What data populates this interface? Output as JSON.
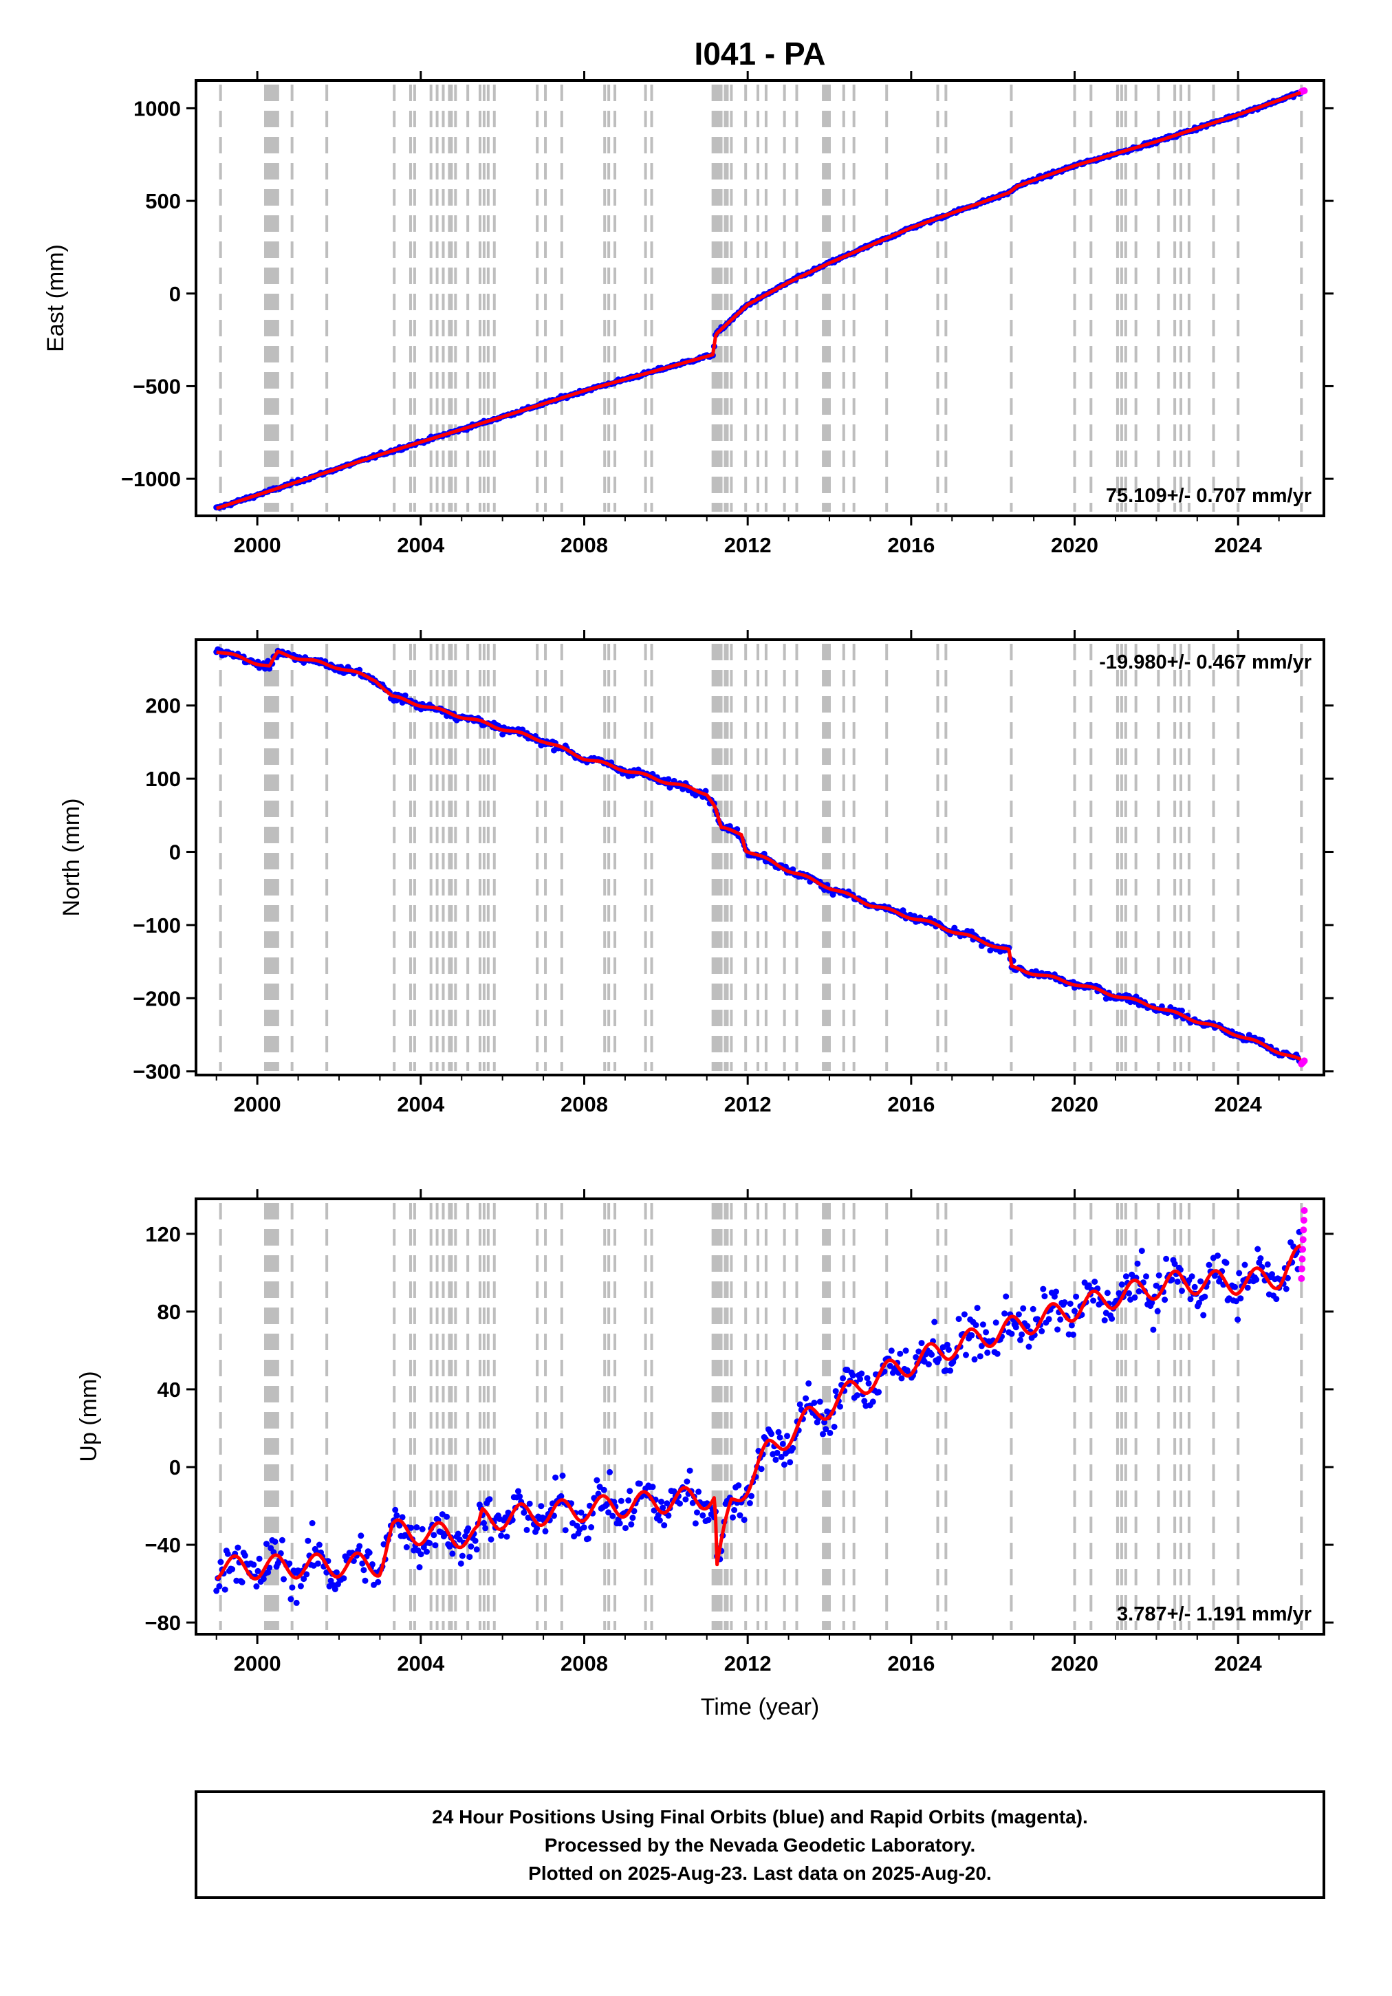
{
  "title": "I041 - PA",
  "xlabel": "Time (year)",
  "x_ticks": [
    "2000",
    "2004",
    "2008",
    "2012",
    "2016",
    "2020",
    "2024"
  ],
  "footer": {
    "line1": "24 Hour Positions Using Final Orbits (blue) and Rapid Orbits (magenta).",
    "line2": "Processed by the Nevada Geodetic Laboratory.",
    "line3": "Plotted on 2025-Aug-23. Last data on 2025-Aug-20."
  },
  "colors": {
    "final_orbits": "#0000ff",
    "rapid_orbits": "#ff00ff",
    "model": "#ff0000",
    "event_lines": "#bebebe",
    "frame": "#000000"
  },
  "chart_data": [
    {
      "type": "scatter",
      "ylabel": "East (mm)",
      "xlim": [
        1998.5,
        2026.1
      ],
      "ylim": [
        -1200,
        1150
      ],
      "y_ticks": [
        "1000",
        "500",
        "0",
        "−500",
        "−1000"
      ],
      "y_tick_values": [
        1000,
        500,
        0,
        -500,
        -1000
      ],
      "rate_label": "75.109+/- 0.707 mm/yr",
      "rate_position": "bottom-right",
      "trend_points": [
        [
          1999.0,
          -1160
        ],
        [
          2003.0,
          -870
        ],
        [
          2006.0,
          -665
        ],
        [
          2008.0,
          -525
        ],
        [
          2011.15,
          -330
        ],
        [
          2011.22,
          -220
        ],
        [
          2012.0,
          -60
        ],
        [
          2013.0,
          60
        ],
        [
          2014.0,
          165
        ],
        [
          2016.0,
          355
        ],
        [
          2018.4,
          545
        ],
        [
          2018.6,
          580
        ],
        [
          2020.0,
          690
        ],
        [
          2022.0,
          820
        ],
        [
          2024.0,
          965
        ],
        [
          2025.6,
          1090
        ]
      ],
      "rapid_end_value": 1092
    },
    {
      "type": "scatter",
      "ylabel": "North (mm)",
      "xlim": [
        1998.5,
        2026.1
      ],
      "ylim": [
        -305,
        290
      ],
      "y_ticks": [
        "200",
        "100",
        "0",
        "−100",
        "−200",
        "−300"
      ],
      "y_tick_values": [
        200,
        100,
        0,
        -100,
        -200,
        -300
      ],
      "rate_label": "-19.980+/- 0.467 mm/yr",
      "rate_position": "top-right",
      "trend_points": [
        [
          1999.0,
          275
        ],
        [
          2000.3,
          253
        ],
        [
          2000.5,
          272
        ],
        [
          2002.0,
          252
        ],
        [
          2002.9,
          235
        ],
        [
          2003.3,
          212
        ],
        [
          2005.0,
          185
        ],
        [
          2007.0,
          152
        ],
        [
          2008.0,
          128
        ],
        [
          2011.0,
          80
        ],
        [
          2011.2,
          62
        ],
        [
          2011.35,
          32
        ],
        [
          2011.85,
          25
        ],
        [
          2011.95,
          3
        ],
        [
          2013.0,
          -25
        ],
        [
          2015.0,
          -72
        ],
        [
          2016.5,
          -98
        ],
        [
          2018.4,
          -135
        ],
        [
          2018.45,
          -158
        ],
        [
          2020.0,
          -180
        ],
        [
          2022.0,
          -212
        ],
        [
          2024.0,
          -250
        ],
        [
          2025.6,
          -287
        ]
      ],
      "rapid_end_value": -288
    },
    {
      "type": "scatter",
      "ylabel": "Up (mm)",
      "xlim": [
        1998.5,
        2026.1
      ],
      "ylim": [
        -86,
        138
      ],
      "y_ticks": [
        "120",
        "80",
        "40",
        "0",
        "−40",
        "−80"
      ],
      "y_tick_values": [
        120,
        80,
        40,
        0,
        -40,
        -80
      ],
      "rate_label": "3.787+/- 1.191 mm/yr",
      "rate_position": "bottom-right",
      "trend_points": [
        [
          1999.0,
          -52
        ],
        [
          2003.0,
          -50
        ],
        [
          2003.3,
          -33
        ],
        [
          2005.4,
          -36
        ],
        [
          2005.5,
          -27
        ],
        [
          2011.2,
          -15
        ],
        [
          2011.25,
          -52
        ],
        [
          2011.6,
          -20
        ],
        [
          2012.5,
          8
        ],
        [
          2013.5,
          25
        ],
        [
          2015.0,
          45
        ],
        [
          2017.0,
          62
        ],
        [
          2019.0,
          75
        ],
        [
          2021.0,
          88
        ],
        [
          2022.5,
          95
        ],
        [
          2024.0,
          95
        ],
        [
          2025.0,
          98
        ],
        [
          2025.6,
          110
        ]
      ],
      "rapid_end_value": 112
    }
  ],
  "event_years": [
    1999.1,
    2000.2,
    2000.25,
    2000.3,
    2000.35,
    2000.4,
    2000.45,
    2000.5,
    2000.85,
    2001.7,
    2003.35,
    2003.75,
    2003.85,
    2004.25,
    2004.4,
    2004.55,
    2004.7,
    2004.75,
    2004.85,
    2005.15,
    2005.45,
    2005.55,
    2005.65,
    2005.8,
    2006.85,
    2007.05,
    2007.45,
    2008.5,
    2008.6,
    2008.75,
    2009.5,
    2009.65,
    2011.15,
    2011.2,
    2011.25,
    2011.3,
    2011.35,
    2011.45,
    2011.5,
    2011.6,
    2011.95,
    2012.25,
    2012.45,
    2012.9,
    2013.2,
    2013.85,
    2013.9,
    2013.95,
    2014.0,
    2014.35,
    2014.6,
    2015.4,
    2016.65,
    2016.85,
    2018.45,
    2020.0,
    2020.4,
    2021.05,
    2021.15,
    2021.25,
    2021.5,
    2022.05,
    2022.45,
    2022.6,
    2022.8,
    2023.4,
    2024.0,
    2025.55
  ]
}
